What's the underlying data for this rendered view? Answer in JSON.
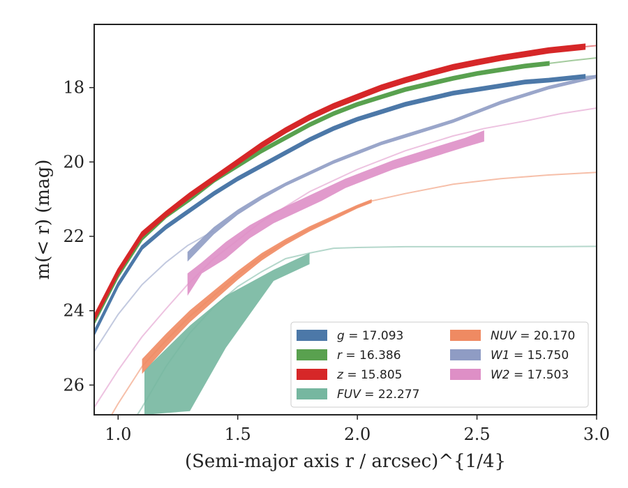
{
  "chart_data": {
    "type": "line",
    "xlabel": "(Semi-major axis r / arcsec)^{1/4}",
    "ylabel": "m(< r) (mag)",
    "xlim": [
      0.9,
      3.0
    ],
    "ylim": [
      26.8,
      16.3
    ],
    "y_inverted": true,
    "grid": false,
    "legend_position": "lower right",
    "legend_columns": 2,
    "x_ticks": [
      1.0,
      1.5,
      2.0,
      2.5,
      3.0
    ],
    "x_tick_labels": [
      "1.0",
      "1.5",
      "2.0",
      "2.5",
      "3.0"
    ],
    "y_ticks": [
      18,
      20,
      22,
      24,
      26
    ],
    "y_tick_labels": [
      "18",
      "20",
      "22",
      "24",
      "26"
    ],
    "series": [
      {
        "name": "g = 17.093",
        "legend_var": "g",
        "legend_value": "17.093",
        "color": "#4c78a8",
        "band_width_mag": 0.08,
        "measured_x": [
          0.9,
          1.0,
          1.1,
          1.2,
          1.3,
          1.4,
          1.5,
          1.6,
          1.7,
          1.8,
          1.9,
          2.0,
          2.1,
          2.2,
          2.3,
          2.4,
          2.5,
          2.6,
          2.7,
          2.8,
          2.95
        ],
        "measured_y": [
          24.6,
          23.3,
          22.3,
          21.75,
          21.3,
          20.85,
          20.45,
          20.1,
          19.75,
          19.4,
          19.1,
          18.85,
          18.65,
          18.45,
          18.3,
          18.15,
          18.05,
          17.95,
          17.85,
          17.8,
          17.7
        ],
        "model_x": [
          2.95,
          3.0
        ],
        "model_y": [
          17.7,
          17.68
        ]
      },
      {
        "name": "r = 16.386",
        "legend_var": "r",
        "legend_value": "16.386",
        "color": "#59a14f",
        "band_width_mag": 0.08,
        "measured_x": [
          0.9,
          1.0,
          1.1,
          1.2,
          1.3,
          1.4,
          1.5,
          1.6,
          1.7,
          1.8,
          1.9,
          2.0,
          2.1,
          2.2,
          2.3,
          2.4,
          2.5,
          2.6,
          2.7,
          2.8
        ],
        "measured_y": [
          24.3,
          23.05,
          22.05,
          21.45,
          21.0,
          20.5,
          20.1,
          19.7,
          19.35,
          19.0,
          18.7,
          18.45,
          18.25,
          18.05,
          17.9,
          17.75,
          17.62,
          17.52,
          17.42,
          17.35
        ],
        "model_x": [
          2.8,
          2.9,
          3.0
        ],
        "model_y": [
          17.35,
          17.27,
          17.2
        ]
      },
      {
        "name": "z = 15.805",
        "legend_var": "z",
        "legend_value": "15.805",
        "color": "#d62728",
        "band_width_mag": 0.12,
        "measured_x": [
          0.9,
          1.0,
          1.1,
          1.2,
          1.3,
          1.4,
          1.5,
          1.6,
          1.7,
          1.8,
          1.9,
          2.0,
          2.1,
          2.2,
          2.3,
          2.4,
          2.5,
          2.6,
          2.7,
          2.8,
          2.95
        ],
        "measured_y": [
          24.2,
          22.95,
          21.95,
          21.4,
          20.9,
          20.45,
          20.0,
          19.55,
          19.15,
          18.8,
          18.5,
          18.25,
          18.0,
          17.8,
          17.62,
          17.45,
          17.32,
          17.2,
          17.1,
          17.0,
          16.9
        ],
        "model_x": [
          2.95,
          3.0
        ],
        "model_y": [
          16.9,
          16.87
        ]
      },
      {
        "name": "FUV = 22.277",
        "legend_var": "FUV",
        "legend_value": "22.277",
        "color": "#76b7a0",
        "band_x": [
          1.11,
          1.3,
          1.45,
          1.65,
          1.8
        ],
        "band_top": [
          25.6,
          24.4,
          23.6,
          22.9,
          22.45
        ],
        "band_bottom": [
          26.8,
          26.7,
          25.0,
          23.2,
          22.75
        ],
        "model_x": [
          0.9,
          1.0,
          1.1,
          1.2,
          1.3,
          1.4,
          1.5,
          1.6,
          1.7,
          1.8,
          1.9,
          2.0,
          2.2,
          2.5,
          2.8,
          3.0
        ],
        "model_y": [
          28.5,
          27.6,
          26.6,
          25.5,
          24.6,
          23.9,
          23.35,
          22.95,
          22.6,
          22.45,
          22.32,
          22.3,
          22.28,
          22.28,
          22.28,
          22.27
        ]
      },
      {
        "name": "NUV = 20.170",
        "legend_var": "NUV",
        "legend_value": "20.170",
        "color": "#ef8a62",
        "band_x": [
          1.1,
          1.2,
          1.3,
          1.4,
          1.5,
          1.6,
          1.7,
          1.8,
          1.9,
          2.0,
          2.06
        ],
        "band_center": [
          25.5,
          24.8,
          24.15,
          23.6,
          23.05,
          22.55,
          22.15,
          21.8,
          21.5,
          21.2,
          21.05
        ],
        "band_half_width": [
          0.2,
          0.18,
          0.16,
          0.14,
          0.12,
          0.1,
          0.08,
          0.07,
          0.06,
          0.05,
          0.05
        ],
        "model_x": [
          0.9,
          1.0,
          1.1,
          1.2,
          1.3,
          1.4,
          1.5,
          1.6,
          1.7,
          1.8,
          1.9,
          2.0,
          2.06,
          2.2,
          2.4,
          2.6,
          2.8,
          3.0
        ],
        "model_y": [
          27.6,
          26.5,
          25.5,
          24.8,
          24.15,
          23.6,
          23.05,
          22.55,
          22.15,
          21.8,
          21.5,
          21.2,
          21.05,
          20.85,
          20.6,
          20.45,
          20.35,
          20.28
        ]
      },
      {
        "name": "W1 = 15.750",
        "legend_var": "W1",
        "legend_value": "15.750",
        "color": "#8f9cc4",
        "band_x": [
          1.29,
          1.4,
          1.5,
          1.6,
          1.7,
          1.8,
          1.9,
          2.0,
          2.1,
          2.2,
          2.3,
          2.4,
          2.5,
          2.6,
          2.7,
          2.8,
          2.9,
          3.0
        ],
        "band_center": [
          22.55,
          21.85,
          21.35,
          20.95,
          20.6,
          20.3,
          20.0,
          19.75,
          19.5,
          19.3,
          19.1,
          18.9,
          18.65,
          18.4,
          18.2,
          18.0,
          17.85,
          17.7
        ],
        "band_half_width": [
          0.13,
          0.1,
          0.07,
          0.06,
          0.05,
          0.05,
          0.05,
          0.05,
          0.05,
          0.05,
          0.05,
          0.05,
          0.05,
          0.05,
          0.05,
          0.05,
          0.05,
          0.05
        ],
        "model_x": [
          0.9,
          1.0,
          1.1,
          1.2,
          1.29,
          1.4
        ],
        "model_y": [
          25.1,
          24.1,
          23.3,
          22.7,
          22.25,
          21.85
        ]
      },
      {
        "name": "W2 = 17.503",
        "legend_var": "W2",
        "legend_value": "17.503",
        "color": "#de8fc6",
        "band_x": [
          1.29,
          1.35,
          1.45,
          1.55,
          1.65,
          1.75,
          1.85,
          1.95,
          2.05,
          2.15,
          2.25,
          2.35,
          2.45,
          2.53
        ],
        "band_top": [
          23.0,
          22.7,
          22.15,
          21.7,
          21.35,
          21.05,
          20.75,
          20.45,
          20.2,
          19.95,
          19.75,
          19.55,
          19.35,
          19.15
        ],
        "band_bottom": [
          23.6,
          23.0,
          22.6,
          22.05,
          21.65,
          21.35,
          21.05,
          20.7,
          20.45,
          20.2,
          20.0,
          19.8,
          19.6,
          19.45
        ],
        "model_x": [
          0.9,
          1.0,
          1.1,
          1.2,
          1.29,
          1.4,
          1.6,
          1.8,
          2.0,
          2.2,
          2.4,
          2.53,
          2.7,
          2.85,
          3.0
        ],
        "model_y": [
          26.6,
          25.6,
          24.7,
          23.95,
          23.3,
          22.6,
          21.6,
          20.8,
          20.2,
          19.7,
          19.3,
          19.1,
          18.9,
          18.7,
          18.55
        ]
      }
    ]
  }
}
